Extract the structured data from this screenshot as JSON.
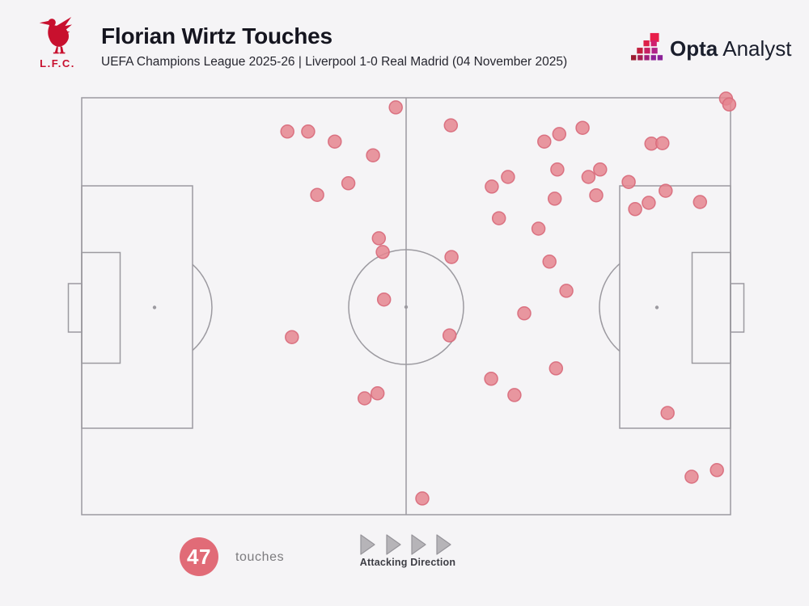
{
  "header": {
    "club_label": "L.F.C.",
    "title": "Florian Wirtz Touches",
    "subtitle": "UEFA Champions League 2025-26 | Liverpool 1-0 Real Madrid (04 November 2025)",
    "brand_bold": "Opta",
    "brand_regular": "Analyst"
  },
  "footer": {
    "touch_count": "47",
    "touches_label": "touches",
    "attacking_direction_label": "Attacking Direction"
  },
  "colors": {
    "background": "#f5f4f6",
    "pitch_line": "#9c9aa0",
    "touch_fill": "#e5858f",
    "touch_stroke": "#d8697a",
    "badge": "#e16b77",
    "liverpool_red": "#c8102e",
    "title_text": "#15151f",
    "subtitle_text": "#26262f",
    "opta_navy": "#1a1e2c",
    "label_gray": "#7c7b7e",
    "label_dark": "#3d3d44"
  },
  "chart_data": {
    "type": "scatter",
    "title": "Florian Wirtz Touches",
    "player": "Florian Wirtz",
    "competition": "UEFA Champions League 2025-26",
    "match": "Liverpool 1-0 Real Madrid",
    "date": "04 November 2025",
    "touches_total": 47,
    "attacking_direction": "left-to-right",
    "coordinate_system": "percent of pitch: x 0 = own goal line, x 100 = opponent goal line; y 0 = top touchline, y 100 = bottom touchline",
    "points": [
      [
        48.4,
        2.3
      ],
      [
        31.7,
        8.1
      ],
      [
        34.9,
        8.1
      ],
      [
        39.0,
        10.5
      ],
      [
        44.9,
        13.8
      ],
      [
        41.1,
        20.5
      ],
      [
        36.3,
        23.3
      ],
      [
        45.8,
        33.7
      ],
      [
        46.4,
        37.0
      ],
      [
        46.6,
        48.4
      ],
      [
        56.9,
        6.6
      ],
      [
        77.2,
        7.2
      ],
      [
        73.6,
        8.7
      ],
      [
        71.3,
        10.5
      ],
      [
        87.8,
        11.0
      ],
      [
        89.5,
        10.9
      ],
      [
        99.3,
        0.2
      ],
      [
        99.8,
        1.6
      ],
      [
        73.3,
        17.2
      ],
      [
        79.9,
        17.2
      ],
      [
        78.1,
        19.0
      ],
      [
        65.7,
        19.0
      ],
      [
        63.2,
        21.3
      ],
      [
        84.3,
        20.2
      ],
      [
        90.0,
        22.3
      ],
      [
        87.4,
        25.2
      ],
      [
        85.3,
        26.7
      ],
      [
        95.3,
        25.0
      ],
      [
        72.9,
        24.2
      ],
      [
        79.3,
        23.4
      ],
      [
        64.3,
        28.9
      ],
      [
        70.4,
        31.4
      ],
      [
        57.0,
        38.2
      ],
      [
        72.1,
        39.3
      ],
      [
        74.7,
        46.3
      ],
      [
        68.2,
        51.7
      ],
      [
        32.4,
        57.4
      ],
      [
        56.7,
        57.0
      ],
      [
        43.6,
        72.1
      ],
      [
        45.6,
        70.9
      ],
      [
        73.1,
        64.9
      ],
      [
        63.1,
        67.4
      ],
      [
        66.7,
        71.3
      ],
      [
        90.3,
        75.6
      ],
      [
        94.0,
        90.9
      ],
      [
        97.9,
        89.3
      ],
      [
        52.5,
        96.1
      ]
    ]
  }
}
